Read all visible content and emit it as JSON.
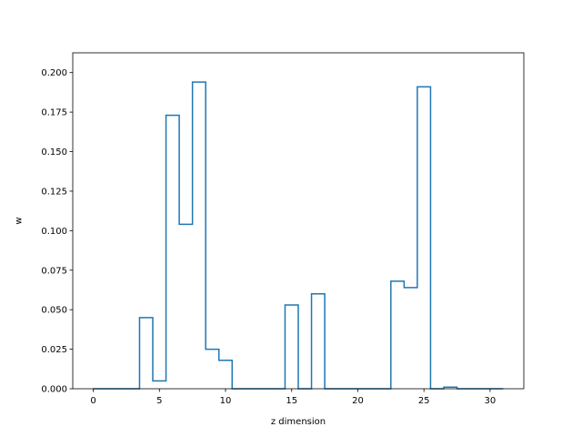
{
  "chart_data": {
    "type": "step",
    "xlabel": "z dimension",
    "ylabel": "w",
    "xlim": [
      -1.55,
      32.55
    ],
    "ylim": [
      0,
      0.2125
    ],
    "xticks": [
      0,
      5,
      10,
      15,
      20,
      25,
      30
    ],
    "xtick_labels": [
      "0",
      "5",
      "10",
      "15",
      "20",
      "25",
      "30"
    ],
    "yticks": [
      0.0,
      0.025,
      0.05,
      0.075,
      0.1,
      0.125,
      0.15,
      0.175,
      0.2
    ],
    "ytick_labels": [
      "0.000",
      "0.025",
      "0.050",
      "0.075",
      "0.100",
      "0.125",
      "0.150",
      "0.175",
      "0.200"
    ],
    "grid": false,
    "series": [
      {
        "color": "#1f77b4",
        "x": [
          0,
          1,
          2,
          3,
          4,
          5,
          6,
          7,
          8,
          9,
          10,
          11,
          12,
          13,
          14,
          15,
          16,
          17,
          18,
          19,
          20,
          21,
          22,
          23,
          24,
          25,
          26,
          27,
          28,
          29,
          30,
          31
        ],
        "values": [
          0,
          0,
          0,
          0,
          0.045,
          0.005,
          0.173,
          0.104,
          0.194,
          0.025,
          0.018,
          0,
          0,
          0,
          0,
          0.053,
          0,
          0.06,
          0,
          0,
          0,
          0,
          0,
          0.068,
          0.064,
          0.191,
          0,
          0.001,
          0,
          0,
          0,
          0
        ]
      }
    ]
  }
}
